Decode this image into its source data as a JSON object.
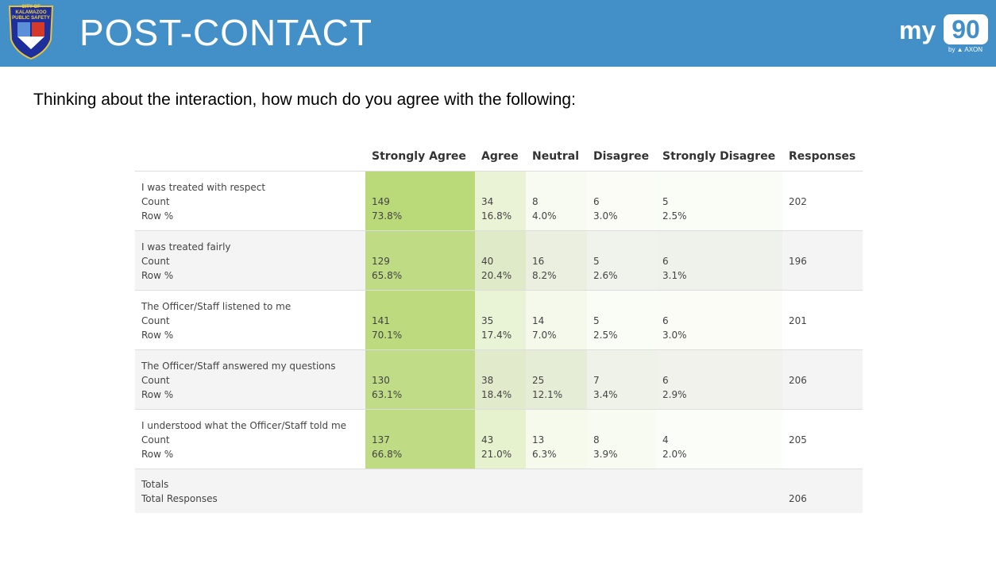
{
  "header": {
    "title": "POST-CONTACT",
    "badge_text": "CITY OF KALAMAZOO PUBLIC SAFETY",
    "logo": {
      "my": "my",
      "num": "90",
      "by": "by ▲ AXON"
    }
  },
  "question": "Thinking about the interaction, how much do you agree with the following:",
  "table": {
    "columns": [
      "Strongly Agree",
      "Agree",
      "Neutral",
      "Disagree",
      "Strongly Disagree",
      "Responses"
    ],
    "count_label": "Count",
    "pct_label": "Row %",
    "rows": [
      {
        "label": "I was treated with respect",
        "counts": [
          "149",
          "34",
          "8",
          "6",
          "5"
        ],
        "pcts": [
          "73.8%",
          "16.8%",
          "4.0%",
          "3.0%",
          "2.5%"
        ],
        "responses": "202"
      },
      {
        "label": "I was treated fairly",
        "counts": [
          "129",
          "40",
          "16",
          "5",
          "6"
        ],
        "pcts": [
          "65.8%",
          "20.4%",
          "8.2%",
          "2.6%",
          "3.1%"
        ],
        "responses": "196"
      },
      {
        "label": "The Officer/Staff listened to me",
        "counts": [
          "141",
          "35",
          "14",
          "5",
          "6"
        ],
        "pcts": [
          "70.1%",
          "17.4%",
          "7.0%",
          "2.5%",
          "3.0%"
        ],
        "responses": "201"
      },
      {
        "label": "The Officer/Staff answered my questions",
        "counts": [
          "130",
          "38",
          "25",
          "7",
          "6"
        ],
        "pcts": [
          "63.1%",
          "18.4%",
          "12.1%",
          "3.4%",
          "2.9%"
        ],
        "responses": "206"
      },
      {
        "label": "I understood what the Officer/Staff told me",
        "counts": [
          "137",
          "43",
          "13",
          "8",
          "4"
        ],
        "pcts": [
          "66.8%",
          "21.0%",
          "6.3%",
          "3.9%",
          "2.0%"
        ],
        "responses": "205"
      }
    ],
    "totals": {
      "label": "Totals",
      "sub": "Total Responses",
      "value": "206"
    },
    "heat_color": "#b9d877"
  }
}
